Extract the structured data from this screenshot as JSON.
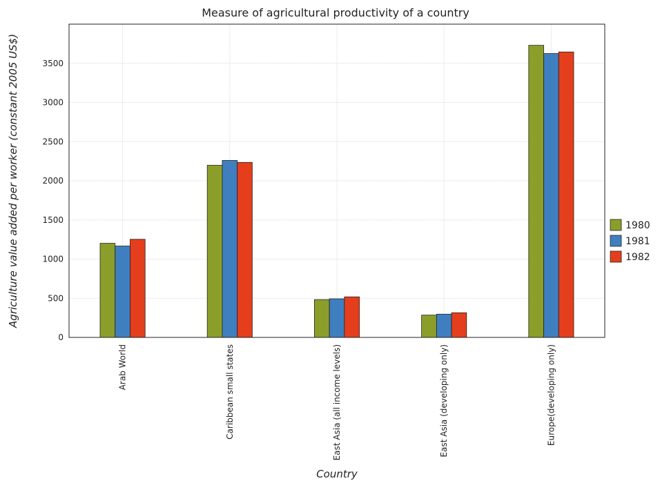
{
  "chart_data": {
    "type": "bar",
    "title": "Measure of agricultural productivity of a country",
    "xlabel": "Country",
    "ylabel": "Agriculture value added per worker (constant 2005 US$)",
    "categories": [
      "Arab World",
      "Caribbean small states",
      "East Asia (all income levels)",
      "East Asia (developing only)",
      "Europe(developing only)"
    ],
    "series": [
      {
        "name": "1980",
        "color": "#8c9e2a",
        "values": [
          1202,
          2198,
          483,
          285,
          3730
        ]
      },
      {
        "name": "1981",
        "color": "#3f7fbf",
        "values": [
          1167,
          2260,
          493,
          297,
          3625
        ]
      },
      {
        "name": "1982",
        "color": "#e53e1c",
        "values": [
          1253,
          2235,
          518,
          315,
          3645
        ]
      }
    ],
    "ylim": [
      0,
      4000
    ],
    "yticks": [
      0,
      500,
      1000,
      1500,
      2000,
      2500,
      3000,
      3500
    ],
    "grid": true,
    "legend_position": "right"
  }
}
